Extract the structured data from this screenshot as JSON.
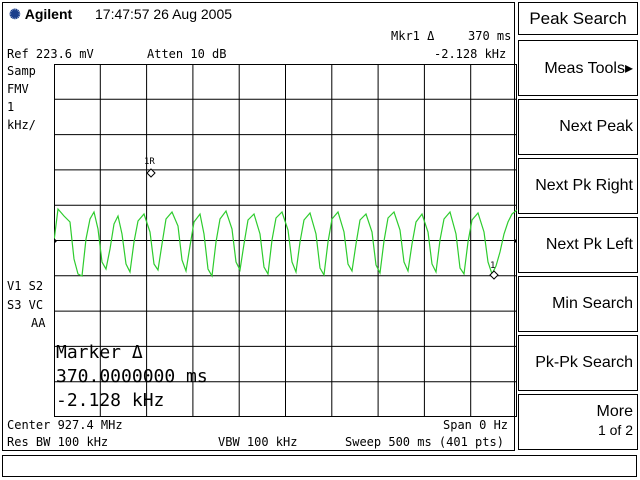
{
  "header": {
    "brand": "Agilent",
    "datetime": "17:47:57  26 Aug 2005"
  },
  "marker_readout": {
    "label": "Mkr1 Δ",
    "time": "370 ms",
    "freq": "-2.128 kHz"
  },
  "top_info": {
    "ref": "Ref 223.6 mV",
    "atten": "Atten 10 dB"
  },
  "left_panel": {
    "samp": "Samp",
    "fmv": "FMV",
    "scale_value": "1",
    "scale_unit": "kHz/",
    "v1s2": "V1  S2",
    "s3vc": "S3  VC",
    "aa": "AA"
  },
  "marker_box": {
    "title": "Marker Δ",
    "time": "370.0000000 ms",
    "freq": "-2.128 kHz"
  },
  "marker_labels": {
    "ref": "1R",
    "delta": "1"
  },
  "bottom_info": {
    "center": "Center 927.4 MHz",
    "span": "Span 0 Hz",
    "rbw": "Res BW 100 kHz",
    "vbw": "VBW 100 kHz",
    "sweep": "Sweep 500 ms (401 pts)"
  },
  "softkeys": {
    "title": "Peak Search",
    "items": [
      "Meas Tools▸",
      "Next Peak",
      "Next Pk Right",
      "Next Pk Left",
      "Min Search",
      "Pk-Pk Search"
    ],
    "more_label": "More",
    "more_page": "1 of 2"
  },
  "trace_color": "#2ecc2e"
}
